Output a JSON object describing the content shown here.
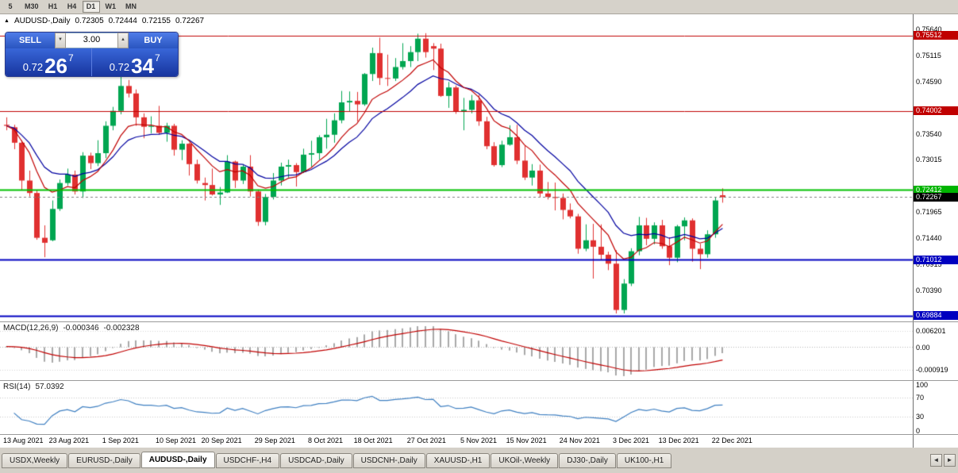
{
  "toolbar": {
    "timeframes": [
      {
        "label": "5",
        "active": false
      },
      {
        "label": "M30",
        "active": false
      },
      {
        "label": "H1",
        "active": false
      },
      {
        "label": "H4",
        "active": false
      },
      {
        "label": "D1",
        "active": true
      },
      {
        "label": "W1",
        "active": false
      },
      {
        "label": "MN",
        "active": false
      }
    ]
  },
  "chart": {
    "icon": "▲",
    "symbol_period": "AUDUSD-,Daily",
    "ohlc": {
      "open": "0.72305",
      "high": "0.72444",
      "low": "0.72155",
      "close": "0.72267"
    }
  },
  "trade_panel": {
    "sell_label": "SELL",
    "buy_label": "BUY",
    "volume": "3.00",
    "sell_price": {
      "prefix": "0.72",
      "big": "26",
      "sup": "7"
    },
    "buy_price": {
      "prefix": "0.72",
      "big": "34",
      "sup": "7"
    }
  },
  "price_axis": {
    "ticks": [
      {
        "label": "0.75640",
        "price": 0.7564
      },
      {
        "label": "0.75115",
        "price": 0.75115
      },
      {
        "label": "0.74590",
        "price": 0.7459
      },
      {
        "label": "0.73540",
        "price": 0.7354
      },
      {
        "label": "0.73015",
        "price": 0.73015
      },
      {
        "label": "0.71965",
        "price": 0.71965
      },
      {
        "label": "0.71440",
        "price": 0.7144
      },
      {
        "label": "0.70915",
        "price": 0.70915
      },
      {
        "label": "0.70390",
        "price": 0.7039
      }
    ],
    "badges": [
      {
        "label": "0.75512",
        "price": 0.75512,
        "bg": "#C00000",
        "name": "hline-price-badge-0-75512"
      },
      {
        "label": "0.74002",
        "price": 0.74002,
        "bg": "#C00000",
        "name": "hline-price-badge-0-74002"
      },
      {
        "label": "0.72412",
        "price": 0.72412,
        "bg": "#00B400",
        "name": "hline-price-badge-0-72412"
      },
      {
        "label": "0.71012",
        "price": 0.71012,
        "bg": "#0000C0",
        "name": "hline-price-badge-0-71012"
      },
      {
        "label": "0.69884",
        "price": 0.69884,
        "bg": "#0000C0",
        "name": "hline-price-badge-0-69884"
      },
      {
        "label": "0.72267",
        "price": 0.72267,
        "bg": "#000000",
        "name": "current-price-badge"
      }
    ]
  },
  "indicators": {
    "macd": {
      "title": "MACD(12,26,9)",
      "value_main": "-0.000346",
      "value_signal": "-0.002328",
      "fast": 12,
      "slow": 26,
      "signal": 9,
      "axis_labels": [
        "0.006201",
        "0.00",
        "-0.000919"
      ]
    },
    "rsi": {
      "title": "RSI(14)",
      "value": "57.0392",
      "period": 14,
      "axis_labels": [
        "100",
        "70",
        "30",
        "0"
      ],
      "levels": [
        70,
        30
      ]
    }
  },
  "chart_data": {
    "type": "candlestick",
    "symbol": "AUDUSD-",
    "period": "Daily",
    "visible_price_range": [
      0.6977,
      0.7594
    ],
    "colors": {
      "up": "#00A651",
      "down": "#E03030",
      "ma_fast": "#C00000",
      "ma_slow": "#0000A0",
      "macd_hist": "#A8A8A8",
      "macd_signal": "#C00000",
      "rsi": "#3E7FC1"
    },
    "overlays": [
      {
        "name": "ma-fast",
        "type": "ema",
        "period": 8,
        "color": "#C00000"
      },
      {
        "name": "ma-slow",
        "type": "ema",
        "period": 14,
        "color": "#0000A0"
      }
    ],
    "hlines": [
      {
        "name": "resistance-line-0-75512",
        "price": 0.75512,
        "color": "#C00000",
        "width": 1
      },
      {
        "name": "resistance-line-0-74002",
        "price": 0.74002,
        "color": "#C00000",
        "width": 1
      },
      {
        "name": "support-line-0-72412",
        "price": 0.72412,
        "color": "#00C000",
        "width": 2
      },
      {
        "name": "support-line-0-71012",
        "price": 0.71012,
        "color": "#0000C0",
        "width": 2
      },
      {
        "name": "support-line-0-69884",
        "price": 0.69884,
        "color": "#0000C0",
        "width": 2
      },
      {
        "name": "bid-price-line",
        "price": 0.72267,
        "color": "#808080",
        "width": 1,
        "dash": true
      }
    ],
    "date_labels": [
      {
        "i": 0,
        "label": "13 Aug 2021"
      },
      {
        "i": 6,
        "label": "23 Aug 2021"
      },
      {
        "i": 13,
        "label": "1 Sep 2021"
      },
      {
        "i": 20,
        "label": "10 Sep 2021"
      },
      {
        "i": 26,
        "label": "20 Sep 2021"
      },
      {
        "i": 33,
        "label": "29 Sep 2021"
      },
      {
        "i": 40,
        "label": "8 Oct 2021"
      },
      {
        "i": 46,
        "label": "18 Oct 2021"
      },
      {
        "i": 53,
        "label": "27 Oct 2021"
      },
      {
        "i": 60,
        "label": "5 Nov 2021"
      },
      {
        "i": 66,
        "label": "15 Nov 2021"
      },
      {
        "i": 73,
        "label": "24 Nov 2021"
      },
      {
        "i": 80,
        "label": "3 Dec 2021"
      },
      {
        "i": 86,
        "label": "13 Dec 2021"
      },
      {
        "i": 93,
        "label": "22 Dec 2021"
      }
    ],
    "bars": [
      [
        "2021.08.13",
        0.7372,
        0.7387,
        0.7361,
        0.737
      ],
      [
        "2021.08.16",
        0.7367,
        0.7372,
        0.7323,
        0.7336
      ],
      [
        "2021.08.17",
        0.7336,
        0.7341,
        0.724,
        0.726
      ],
      [
        "2021.08.18",
        0.726,
        0.728,
        0.7228,
        0.7235
      ],
      [
        "2021.08.19",
        0.7235,
        0.7241,
        0.7141,
        0.7145
      ],
      [
        "2021.08.20",
        0.7145,
        0.717,
        0.7106,
        0.7135
      ],
      [
        "2021.08.23",
        0.714,
        0.722,
        0.7138,
        0.7203
      ],
      [
        "2021.08.24",
        0.7203,
        0.7262,
        0.7199,
        0.7255
      ],
      [
        "2021.08.25",
        0.7255,
        0.7284,
        0.725,
        0.7272
      ],
      [
        "2021.08.26",
        0.7272,
        0.728,
        0.7232,
        0.7238
      ],
      [
        "2021.08.27",
        0.7238,
        0.7317,
        0.7225,
        0.731
      ],
      [
        "2021.08.30",
        0.731,
        0.7316,
        0.7283,
        0.7295
      ],
      [
        "2021.08.31",
        0.7295,
        0.7341,
        0.7289,
        0.7315
      ],
      [
        "2021.09.01",
        0.7315,
        0.7379,
        0.7305,
        0.737
      ],
      [
        "2021.09.02",
        0.737,
        0.7408,
        0.7361,
        0.74
      ],
      [
        "2021.09.03",
        0.74,
        0.7478,
        0.7393,
        0.745
      ],
      [
        "2021.09.06",
        0.745,
        0.7462,
        0.7427,
        0.7435
      ],
      [
        "2021.09.07",
        0.7435,
        0.7443,
        0.737,
        0.7387
      ],
      [
        "2021.09.08",
        0.7387,
        0.7395,
        0.7345,
        0.7368
      ],
      [
        "2021.09.09",
        0.7368,
        0.7389,
        0.7355,
        0.737
      ],
      [
        "2021.09.10",
        0.737,
        0.741,
        0.7352,
        0.7356
      ],
      [
        "2021.09.13",
        0.7356,
        0.7376,
        0.7338,
        0.737
      ],
      [
        "2021.09.14",
        0.737,
        0.7374,
        0.731,
        0.7322
      ],
      [
        "2021.09.15",
        0.7322,
        0.7341,
        0.7301,
        0.7334
      ],
      [
        "2021.09.16",
        0.7334,
        0.7336,
        0.727,
        0.7293
      ],
      [
        "2021.09.17",
        0.7293,
        0.7302,
        0.7254,
        0.726
      ],
      [
        "2021.09.20",
        0.7255,
        0.7266,
        0.722,
        0.7251
      ],
      [
        "2021.09.21",
        0.7251,
        0.7284,
        0.723,
        0.7232
      ],
      [
        "2021.09.22",
        0.7232,
        0.7247,
        0.7211,
        0.7236
      ],
      [
        "2021.09.23",
        0.7236,
        0.7311,
        0.7235,
        0.7298
      ],
      [
        "2021.09.24",
        0.7298,
        0.73,
        0.7245,
        0.726
      ],
      [
        "2021.09.27",
        0.726,
        0.7293,
        0.7253,
        0.7288
      ],
      [
        "2021.09.28",
        0.7288,
        0.7311,
        0.7228,
        0.7238
      ],
      [
        "2021.09.29",
        0.7238,
        0.7242,
        0.7169,
        0.7177
      ],
      [
        "2021.09.30",
        0.7177,
        0.7233,
        0.717,
        0.7227
      ],
      [
        "2021.10.01",
        0.7227,
        0.7275,
        0.7222,
        0.726
      ],
      [
        "2021.10.04",
        0.726,
        0.7296,
        0.725,
        0.7288
      ],
      [
        "2021.10.05",
        0.7288,
        0.7302,
        0.7266,
        0.7291
      ],
      [
        "2021.10.06",
        0.7291,
        0.7295,
        0.7248,
        0.7277
      ],
      [
        "2021.10.07",
        0.7277,
        0.7324,
        0.7275,
        0.7312
      ],
      [
        "2021.10.08",
        0.7312,
        0.734,
        0.7288,
        0.7315
      ],
      [
        "2021.10.11",
        0.7315,
        0.7351,
        0.7302,
        0.7347
      ],
      [
        "2021.10.12",
        0.7347,
        0.7384,
        0.7324,
        0.7352
      ],
      [
        "2021.10.13",
        0.7352,
        0.7395,
        0.7336,
        0.7381
      ],
      [
        "2021.10.14",
        0.7381,
        0.744,
        0.7375,
        0.7417
      ],
      [
        "2021.10.15",
        0.7417,
        0.7439,
        0.7398,
        0.742
      ],
      [
        "2021.10.18",
        0.742,
        0.7438,
        0.7379,
        0.7413
      ],
      [
        "2021.10.19",
        0.7413,
        0.7476,
        0.741,
        0.7474
      ],
      [
        "2021.10.20",
        0.7474,
        0.7527,
        0.746,
        0.7516
      ],
      [
        "2021.10.21",
        0.7516,
        0.7547,
        0.7452,
        0.7466
      ],
      [
        "2021.10.22",
        0.7466,
        0.7513,
        0.745,
        0.7465
      ],
      [
        "2021.10.25",
        0.7465,
        0.7506,
        0.746,
        0.7488
      ],
      [
        "2021.10.26",
        0.7488,
        0.7536,
        0.7483,
        0.75
      ],
      [
        "2021.10.27",
        0.75,
        0.753,
        0.7488,
        0.7518
      ],
      [
        "2021.10.28",
        0.7518,
        0.7555,
        0.75,
        0.7545
      ],
      [
        "2021.10.29",
        0.7545,
        0.7556,
        0.7507,
        0.7518
      ],
      [
        "2021.11.01",
        0.753,
        0.7536,
        0.7482,
        0.7525
      ],
      [
        "2021.11.02",
        0.7525,
        0.7535,
        0.7428,
        0.743
      ],
      [
        "2021.11.03",
        0.743,
        0.7458,
        0.7406,
        0.7447
      ],
      [
        "2021.11.04",
        0.7447,
        0.7451,
        0.7394,
        0.7399
      ],
      [
        "2021.11.05",
        0.7399,
        0.7426,
        0.7361,
        0.7402
      ],
      [
        "2021.11.08",
        0.7402,
        0.7432,
        0.7395,
        0.7421
      ],
      [
        "2021.11.09",
        0.7421,
        0.7432,
        0.737,
        0.7379
      ],
      [
        "2021.11.10",
        0.7379,
        0.7388,
        0.7323,
        0.7329
      ],
      [
        "2021.11.11",
        0.7329,
        0.7337,
        0.7288,
        0.7291
      ],
      [
        "2021.11.12",
        0.7291,
        0.734,
        0.7287,
        0.7332
      ],
      [
        "2021.11.15",
        0.7332,
        0.7371,
        0.733,
        0.7347
      ],
      [
        "2021.11.16",
        0.7347,
        0.7372,
        0.7293,
        0.73
      ],
      [
        "2021.11.17",
        0.73,
        0.7331,
        0.7261,
        0.7266
      ],
      [
        "2021.11.18",
        0.7266,
        0.7293,
        0.725,
        0.728
      ],
      [
        "2021.11.19",
        0.728,
        0.7292,
        0.7227,
        0.7234
      ],
      [
        "2021.11.22",
        0.7234,
        0.7257,
        0.7222,
        0.7227
      ],
      [
        "2021.11.23",
        0.7227,
        0.7256,
        0.72,
        0.7225
      ],
      [
        "2021.11.24",
        0.7225,
        0.7234,
        0.7182,
        0.7201
      ],
      [
        "2021.11.25",
        0.7201,
        0.7214,
        0.7184,
        0.7188
      ],
      [
        "2021.11.26",
        0.7188,
        0.7193,
        0.7113,
        0.7123
      ],
      [
        "2021.11.29",
        0.7123,
        0.7172,
        0.7118,
        0.714
      ],
      [
        "2021.11.30",
        0.714,
        0.7173,
        0.7063,
        0.7127
      ],
      [
        "2021.12.01",
        0.7127,
        0.7172,
        0.71,
        0.7111
      ],
      [
        "2021.12.02",
        0.7111,
        0.7117,
        0.708,
        0.7093
      ],
      [
        "2021.12.03",
        0.7093,
        0.712,
        0.6993,
        0.7
      ],
      [
        "2021.12.06",
        0.7,
        0.7062,
        0.6993,
        0.7053
      ],
      [
        "2021.12.07",
        0.7053,
        0.7124,
        0.7048,
        0.7118
      ],
      [
        "2021.12.08",
        0.7118,
        0.7187,
        0.711,
        0.717
      ],
      [
        "2021.12.09",
        0.717,
        0.7185,
        0.713,
        0.7143
      ],
      [
        "2021.12.10",
        0.7143,
        0.7176,
        0.7132,
        0.717
      ],
      [
        "2021.12.13",
        0.717,
        0.7181,
        0.7123,
        0.7128
      ],
      [
        "2021.12.14",
        0.7128,
        0.7146,
        0.709,
        0.7105
      ],
      [
        "2021.12.15",
        0.7105,
        0.7171,
        0.7096,
        0.7168
      ],
      [
        "2021.12.16",
        0.7168,
        0.7186,
        0.714,
        0.718
      ],
      [
        "2021.12.17",
        0.718,
        0.7184,
        0.7097,
        0.7123
      ],
      [
        "2021.12.20",
        0.7123,
        0.7133,
        0.7082,
        0.7112
      ],
      [
        "2021.12.21",
        0.7112,
        0.716,
        0.7105,
        0.7152
      ],
      [
        "2021.12.22",
        0.7152,
        0.7227,
        0.7145,
        0.722
      ],
      [
        "2021.12.23",
        0.72305,
        0.72444,
        0.72155,
        0.72267
      ]
    ]
  },
  "tabs": {
    "items": [
      {
        "label": "USDX,Weekly",
        "active": false
      },
      {
        "label": "EURUSD-,Daily",
        "active": false
      },
      {
        "label": "AUDUSD-,Daily",
        "active": true
      },
      {
        "label": "USDCHF-,H4",
        "active": false
      },
      {
        "label": "USDCAD-,Daily",
        "active": false
      },
      {
        "label": "USDCNH-,Daily",
        "active": false
      },
      {
        "label": "XAUUSD-,H1",
        "active": false
      },
      {
        "label": "UKOil-,Weekly",
        "active": false
      },
      {
        "label": "DJ30-,Daily",
        "active": false
      },
      {
        "label": "UK100-,H1",
        "active": false
      }
    ]
  }
}
